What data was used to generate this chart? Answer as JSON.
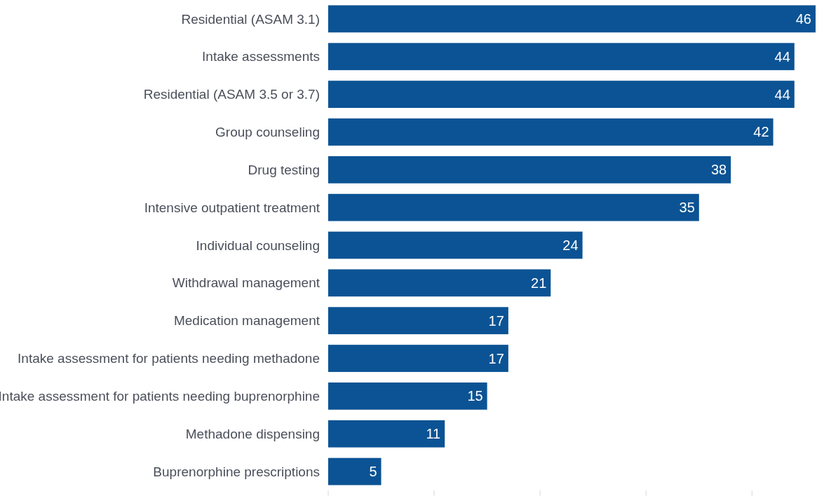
{
  "chart_data": {
    "type": "bar",
    "orientation": "horizontal",
    "categories": [
      "Residential (ASAM 3.1)",
      "Intake assessments",
      "Residential (ASAM 3.5 or 3.7)",
      "Group counseling",
      "Drug testing",
      "Intensive outpatient treatment",
      "Individual counseling",
      "Withdrawal management",
      "Medication management",
      "Intake assessment for patients needing methadone",
      "Intake assessment for patients needing buprenorphine",
      "Methadone dispensing",
      "Buprenorphine prescriptions"
    ],
    "values": [
      46,
      44,
      44,
      42,
      38,
      35,
      24,
      21,
      17,
      17,
      15,
      11,
      5
    ],
    "color": "#0b5394",
    "xticks": [
      {
        "value": 0,
        "label": null
      },
      {
        "value": 10,
        "label": null
      },
      {
        "value": 20,
        "label": null
      },
      {
        "value": 30,
        "label": null
      },
      {
        "value": 40,
        "label": null
      }
    ],
    "data_labels": true
  }
}
